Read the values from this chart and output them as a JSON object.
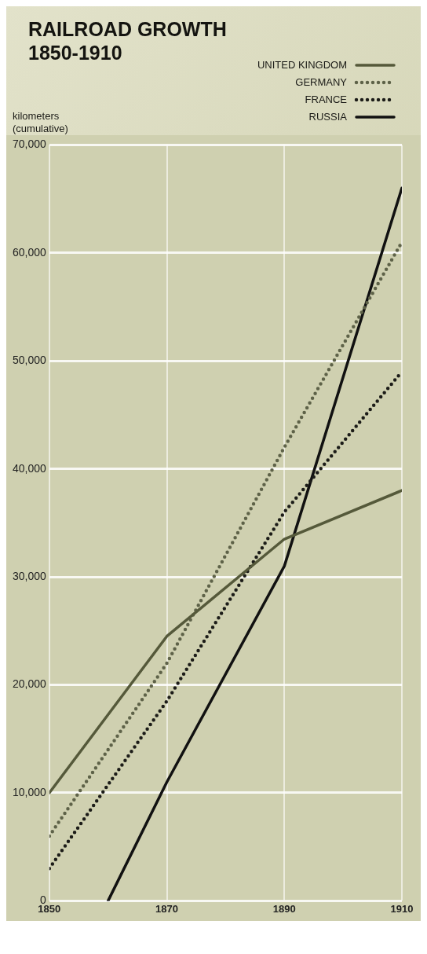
{
  "chart_data": {
    "type": "line",
    "title": "RAILROAD GROWTH\n1850-1910",
    "ylabel": "kilometers\n(cumulative)",
    "xlim": [
      1850,
      1910
    ],
    "xticks": [
      1850,
      1870,
      1890,
      1910
    ],
    "ylim": [
      0,
      70000
    ],
    "yticks": [
      0,
      {
        "value": 10000,
        "label": "10,000"
      },
      {
        "value": 20000,
        "label": "20,000"
      },
      {
        "value": 30000,
        "label": "30,000"
      },
      {
        "value": 40000,
        "label": "40,000"
      },
      {
        "value": 50000,
        "label": "50,000"
      },
      {
        "value": 60000,
        "label": "60,000"
      },
      {
        "value": 70000,
        "label": "70,000"
      }
    ],
    "grid": true,
    "legend": "top right",
    "marker": "none",
    "series": [
      {
        "name": "UNITED KINGDOM",
        "color": "#55593a",
        "line_style": "solid",
        "x": [
          1850,
          1870,
          1890,
          1910
        ],
        "values": [
          10000,
          24500,
          33500,
          38000
        ]
      },
      {
        "name": "GERMANY",
        "color": "#5e6248",
        "line_style": "dotted",
        "x": [
          1850,
          1870,
          1890,
          1910
        ],
        "values": [
          6000,
          22000,
          42000,
          61000
        ]
      },
      {
        "name": "FRANCE",
        "color": "#1c1c18",
        "line_style": "dotted",
        "x": [
          1850,
          1870,
          1890,
          1910
        ],
        "values": [
          3000,
          18500,
          36000,
          49000
        ]
      },
      {
        "name": "RUSSIA",
        "color": "#111111",
        "line_style": "solid",
        "x": [
          1860,
          1870,
          1890,
          1910
        ],
        "values": [
          0,
          11000,
          31000,
          66000
        ]
      }
    ]
  }
}
